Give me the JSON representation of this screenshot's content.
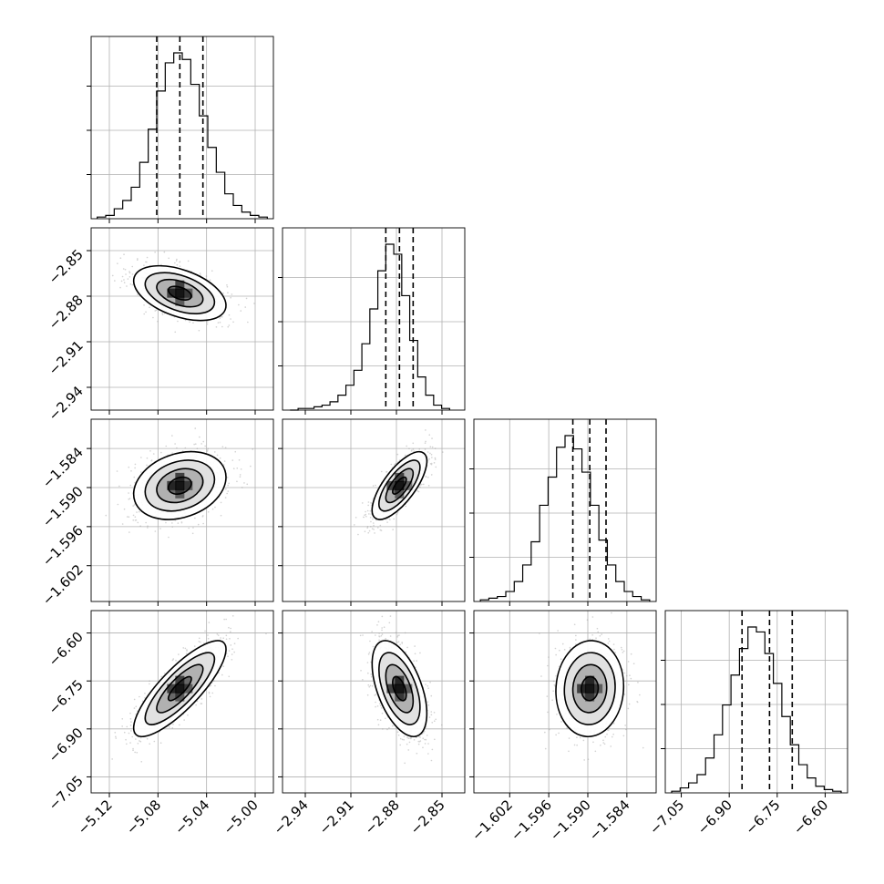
{
  "chart_data": {
    "type": "corner",
    "parameters": [
      {
        "ticks": [
          -5.12,
          -5.08,
          -5.04,
          -5.0
        ],
        "tick_labels": [
          "−5.12",
          "−5.08",
          "−5.04",
          "−5.00"
        ],
        "range": [
          -5.135,
          -4.985
        ],
        "median": -5.062,
        "q16": -5.081,
        "q84": -5.043,
        "sigma": 0.019
      },
      {
        "ticks": [
          -2.94,
          -2.91,
          -2.88,
          -2.85
        ],
        "tick_labels": [
          "−2.94",
          "−2.91",
          "−2.88",
          "−2.85"
        ],
        "range": [
          -2.955,
          -2.835
        ],
        "median": -2.878,
        "q16": -2.887,
        "q84": -2.869,
        "sigma": 0.009
      },
      {
        "ticks": [
          -1.602,
          -1.596,
          -1.59,
          -1.584
        ],
        "tick_labels": [
          "−1.602",
          "−1.596",
          "−1.590",
          "−1.584"
        ],
        "range": [
          -1.6075,
          -1.5795
        ],
        "median": -1.5897,
        "q16": -1.5923,
        "q84": -1.5872,
        "sigma": 0.0026
      },
      {
        "ticks": [
          -7.05,
          -6.9,
          -6.75,
          -6.6
        ],
        "tick_labels": [
          "−7.05",
          "−6.90",
          "−6.75",
          "−6.60"
        ],
        "range": [
          -7.1,
          -6.53
        ],
        "median": -6.774,
        "q16": -6.86,
        "q84": -6.703,
        "sigma": 0.075
      }
    ],
    "histograms": [
      {
        "edges_range": [
          -5.13,
          -4.99
        ],
        "counts": [
          1,
          2,
          6,
          11,
          19,
          34,
          54,
          77,
          94,
          100,
          96,
          81,
          62,
          43,
          28,
          15,
          8,
          4,
          2,
          1
        ]
      },
      {
        "edges_range": [
          -2.95,
          -2.845
        ],
        "counts": [
          0,
          1,
          1,
          2,
          3,
          5,
          9,
          15,
          24,
          40,
          61,
          84,
          100,
          94,
          69,
          42,
          20,
          9,
          3,
          1
        ]
      },
      {
        "edges_range": [
          -1.6065,
          -1.5805
        ],
        "counts": [
          1,
          2,
          3,
          6,
          12,
          22,
          36,
          58,
          75,
          93,
          100,
          92,
          78,
          58,
          37,
          22,
          12,
          6,
          3,
          1
        ]
      },
      {
        "edges_range": [
          -7.08,
          -6.55
        ],
        "counts": [
          1,
          3,
          6,
          11,
          21,
          35,
          53,
          71,
          87,
          100,
          97,
          84,
          66,
          46,
          29,
          17,
          9,
          4,
          2,
          1
        ]
      }
    ],
    "correlations": [
      [
        1.0,
        -0.45,
        0.25,
        0.82
      ],
      [
        -0.45,
        1.0,
        0.72,
        -0.52
      ],
      [
        0.25,
        0.72,
        1.0,
        0.05
      ],
      [
        0.82,
        -0.52,
        0.05,
        1.0
      ]
    ],
    "contour_levels_sigma": [
      0.5,
      1.0,
      1.5,
      2.0
    ],
    "quantiles": [
      0.16,
      0.5,
      0.84
    ],
    "grid": true
  }
}
